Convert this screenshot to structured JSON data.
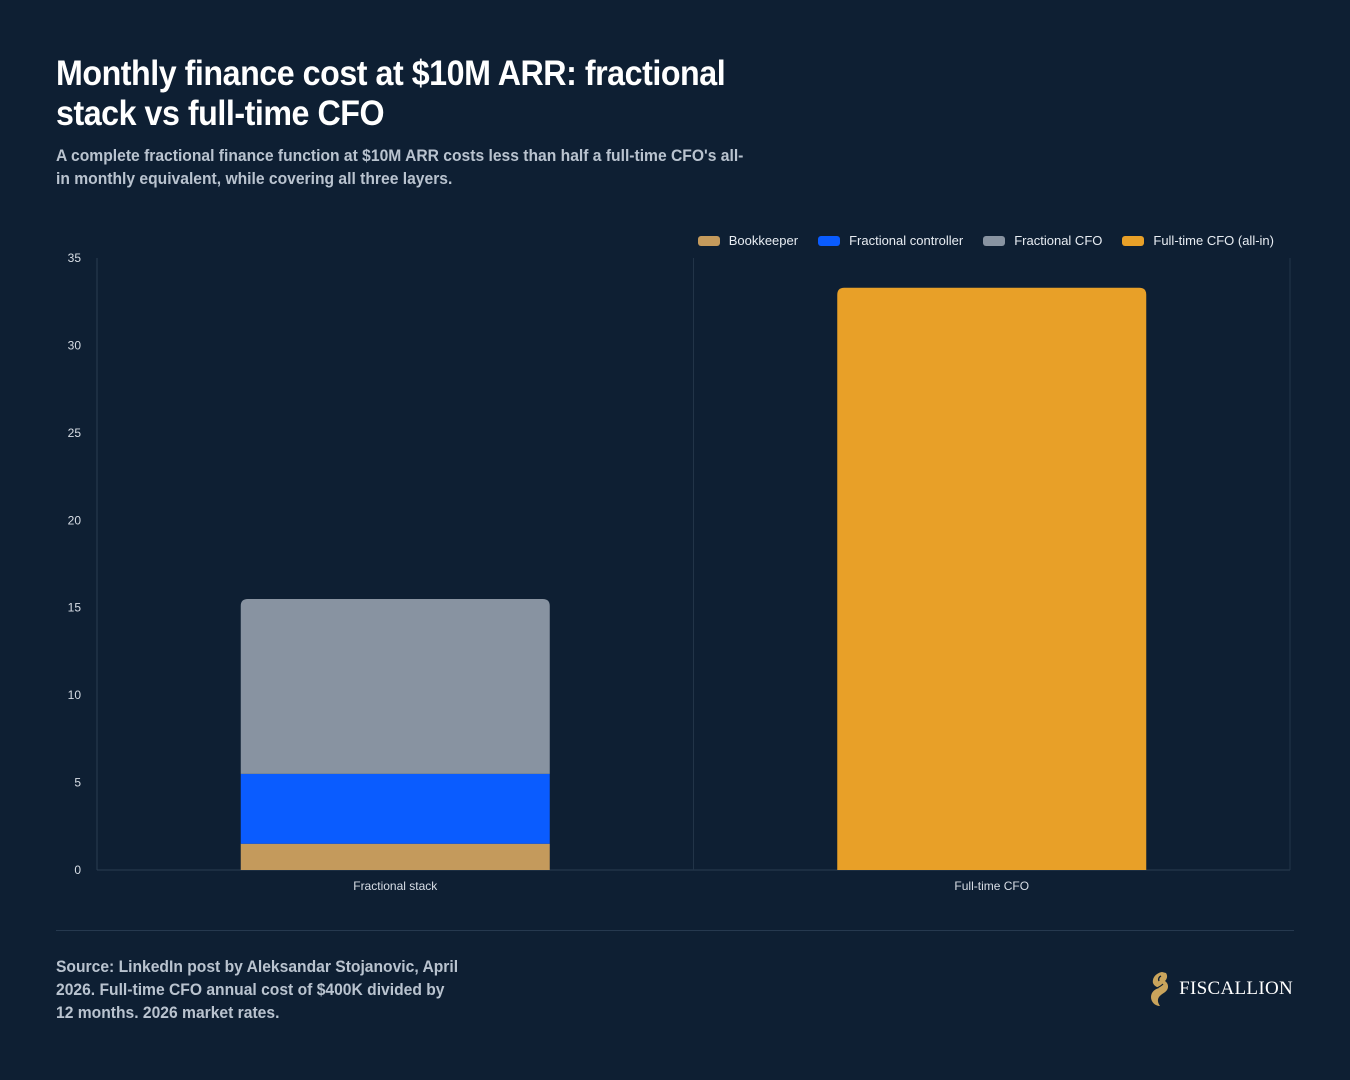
{
  "header": {
    "title": "Monthly finance cost at $10M ARR: fractional stack vs full-time CFO",
    "subtitle": "A complete fractional finance function at $10M ARR costs less than half a full-time CFO's all-in monthly equivalent, while covering all three layers."
  },
  "legend": {
    "items": [
      {
        "label": "Bookkeeper",
        "color": "#c49a5c"
      },
      {
        "label": "Fractional controller",
        "color": "#0a5cff"
      },
      {
        "label": "Fractional CFO",
        "color": "#8893a1"
      },
      {
        "label": "Full-time CFO (all-in)",
        "color": "#e8a028"
      }
    ]
  },
  "chart_data": {
    "type": "bar",
    "stacked": true,
    "categories": [
      "Fractional stack",
      "Full-time CFO"
    ],
    "series": [
      {
        "name": "Bookkeeper",
        "values": [
          1.5,
          0
        ],
        "color": "#c49a5c"
      },
      {
        "name": "Fractional controller",
        "values": [
          4,
          0
        ],
        "color": "#0a5cff"
      },
      {
        "name": "Fractional CFO",
        "values": [
          10,
          0
        ],
        "color": "#8893a1"
      },
      {
        "name": "Full-time CFO (all-in)",
        "values": [
          0,
          33.3
        ],
        "color": "#e8a028"
      }
    ],
    "ylim": [
      0,
      35
    ],
    "yticks": [
      0,
      5,
      10,
      15,
      20,
      25,
      30,
      35
    ],
    "xlabel": "",
    "ylabel": "",
    "grid": "vertical category dividers",
    "legend_position": "top-right"
  },
  "footer": {
    "source": "Source: LinkedIn post by Aleksandar Stojanovic, April 2026. Full-time CFO annual cost of $400K divided by 12 months. 2026 market rates.",
    "brand": "FISCALLION",
    "brand_color": "#c9a45c"
  }
}
